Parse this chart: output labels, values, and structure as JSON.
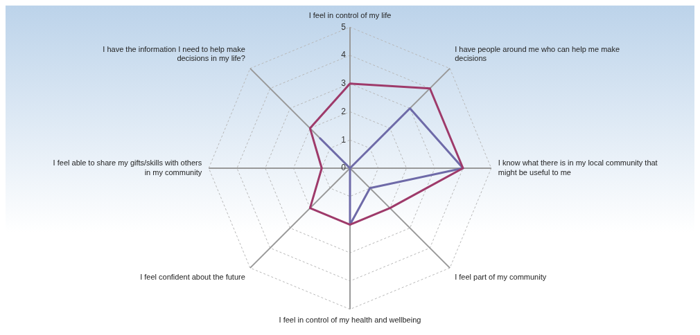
{
  "chart_data": {
    "type": "radar",
    "categories": [
      "I feel in control of my life",
      "I have people around me who can help me make decisions",
      "I know what there is in my local community that might be useful to me",
      "I feel part of my community",
      "I feel in control of my health and wellbeing",
      "I feel confident about the future",
      "I feel able to share my gifts/skills with others in my community",
      "I have the information I need to help make decisions in my life?"
    ],
    "series": [
      {
        "color": "#9e3a6a",
        "values": [
          3,
          4,
          4,
          2,
          2,
          2,
          1,
          2
        ]
      },
      {
        "color": "#6e6aa8",
        "values": [
          0,
          3,
          4,
          1,
          2,
          0,
          0,
          1.5
        ]
      }
    ],
    "ylim": [
      0,
      5
    ],
    "yticks": [
      0,
      1,
      2,
      3,
      4,
      5
    ],
    "grid": true,
    "legend": false,
    "marker": "none",
    "line_style": "solid"
  }
}
